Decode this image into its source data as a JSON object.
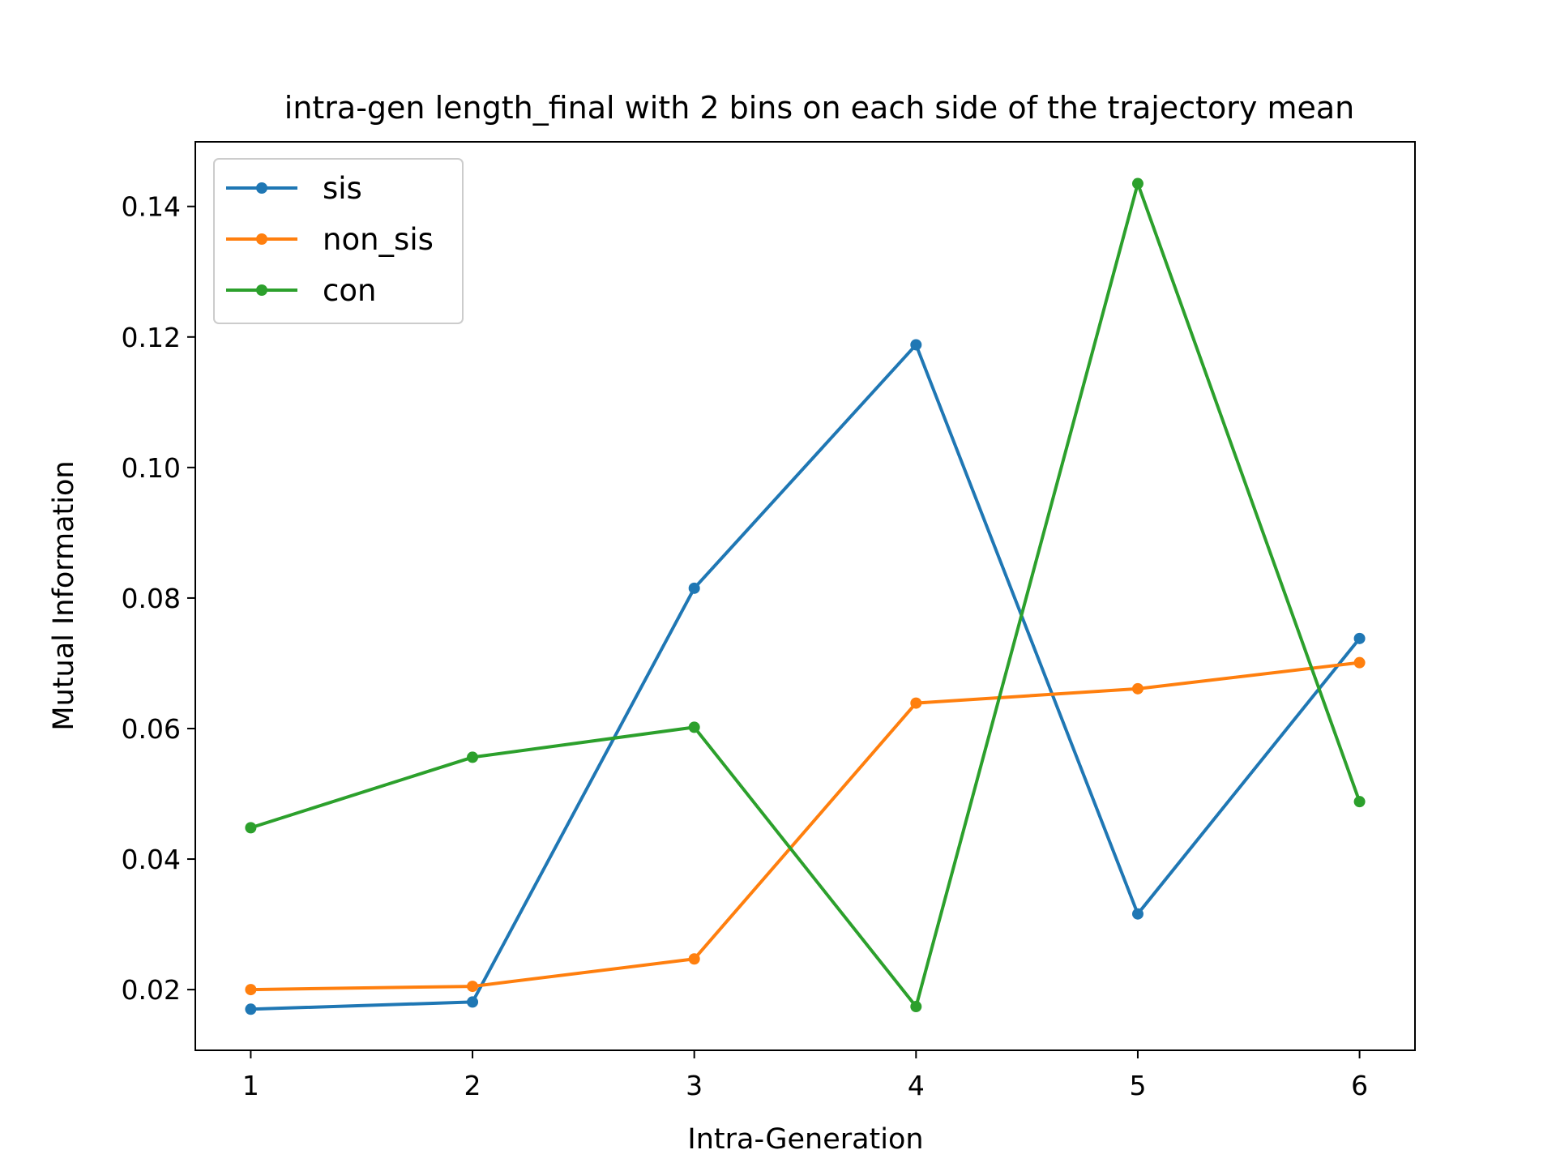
{
  "chart_data": {
    "type": "line",
    "title": "intra-gen length_final with 2 bins on each side of the trajectory mean",
    "xlabel": "Intra-Generation",
    "ylabel": "Mutual Information",
    "x": [
      1,
      2,
      3,
      4,
      5,
      6
    ],
    "xticks": [
      "1",
      "2",
      "3",
      "4",
      "5",
      "6"
    ],
    "yticks": [
      "0.02",
      "0.04",
      "0.06",
      "0.08",
      "0.10",
      "0.12",
      "0.14"
    ],
    "xlim": [
      0.75,
      6.25
    ],
    "ylim": [
      0.0107,
      0.1499
    ],
    "grid": false,
    "legend_position": "upper-left",
    "series": [
      {
        "name": "sis",
        "color": "#1f77b4",
        "values": [
          0.017,
          0.0181,
          0.0815,
          0.1188,
          0.0316,
          0.0738
        ]
      },
      {
        "name": "non_sis",
        "color": "#ff7f0e",
        "values": [
          0.02,
          0.0205,
          0.0247,
          0.0639,
          0.0661,
          0.0701
        ]
      },
      {
        "name": "con",
        "color": "#2ca02c",
        "values": [
          0.0448,
          0.0556,
          0.0602,
          0.0174,
          0.1435,
          0.0488
        ]
      }
    ]
  }
}
